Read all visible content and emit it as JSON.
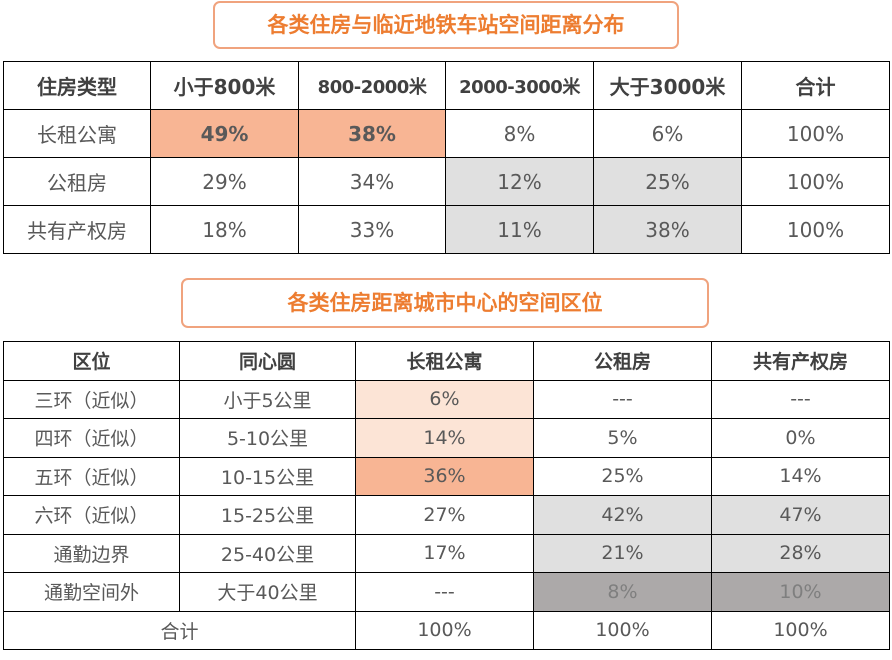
{
  "title1": "各类住房与临近地铁车站空间距离分布",
  "table1": {
    "headers": [
      "住房类型",
      "小于800米",
      "800-2000米",
      "2000-3000米",
      "大于3000米",
      "合计"
    ],
    "rows": [
      [
        "长租公寓",
        "49%",
        "38%",
        "8%",
        "6%",
        "100%"
      ],
      [
        "公租房",
        "29%",
        "34%",
        "12%",
        "25%",
        "100%"
      ],
      [
        "共有产权房",
        "18%",
        "33%",
        "11%",
        "38%",
        "100%"
      ]
    ]
  },
  "title2": "各类住房距离城市中心的空间区位",
  "table2": {
    "headers": [
      "区位",
      "同心圆",
      "长租公寓",
      "公租房",
      "共有产权房"
    ],
    "rows": [
      [
        "三环（近似）",
        "小于5公里",
        "6%",
        "---",
        "---"
      ],
      [
        "四环（近似）",
        "5-10公里",
        "14%",
        "5%",
        "0%"
      ],
      [
        "五环（近似）",
        "10-15公里",
        "36%",
        "25%",
        "14%"
      ],
      [
        "六环（近似）",
        "15-25公里",
        "27%",
        "42%",
        "47%"
      ],
      [
        "通勤边界",
        "25-40公里",
        "17%",
        "21%",
        "28%"
      ],
      [
        "通勤空间外",
        "大于40公里",
        "---",
        "8%",
        "10%"
      ]
    ],
    "total": [
      "合计",
      "100%",
      "100%",
      "100%"
    ]
  },
  "colors": {
    "accent": "#ed7d31",
    "highlight_orange": "#f8b594",
    "highlight_light_orange": "#fce4d6",
    "highlight_gray": "#e0e0e0",
    "highlight_dark_gray": "#aca9a9"
  }
}
